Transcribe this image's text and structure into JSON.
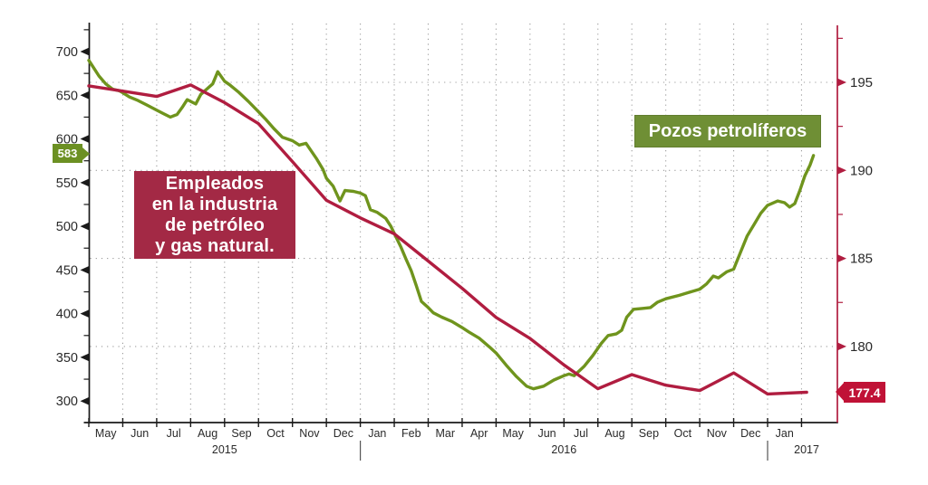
{
  "colors": {
    "background": "#ffffff",
    "wells_green_line": "#6f941d",
    "wells_green_box": "#6f8f35",
    "wells_green_tag": "#6c9023",
    "employees_red_line": "#b01d40",
    "employees_red_box": "#a32945",
    "employees_red_tag": "#c01236",
    "grid_gray": "#9b9b9b",
    "axis_black": "#1a1a1a",
    "tick_label": "#2a2a2a",
    "white_text": "#ffffff"
  },
  "chart_data": {
    "type": "line",
    "x_axis": {
      "month_labels": [
        "May",
        "Jun",
        "Jul",
        "Aug",
        "Sep",
        "Oct",
        "Nov",
        "Dec",
        "Jan",
        "Feb",
        "Mar",
        "Apr",
        "May",
        "Jun",
        "Jul",
        "Aug",
        "Sep",
        "Oct",
        "Nov",
        "Dec",
        "Jan"
      ],
      "year_labels": [
        {
          "label": "2015",
          "center_slot": 4.0
        },
        {
          "label": "2016",
          "center_slot": 14.0
        },
        {
          "label": "2017",
          "center_slot": 21.15
        }
      ],
      "year_separator_slots": [
        8,
        20
      ],
      "start_month": "May 2015",
      "end_month": "Jan 2017"
    },
    "left_axis": {
      "majors": [
        700,
        650,
        600,
        550,
        500,
        450,
        400,
        350,
        300
      ],
      "minors": [
        725,
        675,
        625,
        575,
        525,
        475,
        425,
        375,
        325
      ],
      "range": [
        300,
        700
      ]
    },
    "right_axis": {
      "majors": [
        195,
        190,
        185,
        180
      ],
      "minors": [
        197.5,
        192.5,
        187.5,
        182.5
      ],
      "range": [
        177,
        197
      ]
    },
    "grid": {
      "vertical": "monthly",
      "horizontal_at_right_majors": true
    },
    "end_labels": {
      "wells_latest": "583",
      "employees_latest": "177.4"
    },
    "series": [
      {
        "name": "Pozos petrolíferos",
        "axis": "left",
        "color_key": "wells_green_line",
        "points": [
          [
            0,
            690
          ],
          [
            0.15,
            681
          ],
          [
            0.3,
            672
          ],
          [
            0.5,
            663
          ],
          [
            0.7,
            657
          ],
          [
            0.9,
            655
          ],
          [
            1.0,
            653
          ],
          [
            1.2,
            648
          ],
          [
            1.45,
            644
          ],
          [
            1.7,
            639
          ],
          [
            2.0,
            633
          ],
          [
            2.2,
            629
          ],
          [
            2.4,
            625
          ],
          [
            2.6,
            628
          ],
          [
            2.75,
            636
          ],
          [
            2.9,
            645
          ],
          [
            3.05,
            642
          ],
          [
            3.15,
            640
          ],
          [
            3.3,
            651
          ],
          [
            3.5,
            658
          ],
          [
            3.65,
            663
          ],
          [
            3.8,
            677
          ],
          [
            4.0,
            666
          ],
          [
            4.15,
            662
          ],
          [
            4.4,
            654
          ],
          [
            4.7,
            643
          ],
          [
            5.0,
            631
          ],
          [
            5.2,
            623
          ],
          [
            5.45,
            612
          ],
          [
            5.7,
            602
          ],
          [
            6.0,
            598
          ],
          [
            6.2,
            593
          ],
          [
            6.4,
            595
          ],
          [
            6.7,
            578
          ],
          [
            6.9,
            565
          ],
          [
            7.0,
            555
          ],
          [
            7.2,
            546
          ],
          [
            7.4,
            529
          ],
          [
            7.55,
            541
          ],
          [
            7.8,
            540
          ],
          [
            8.0,
            538
          ],
          [
            8.15,
            535
          ],
          [
            8.3,
            519
          ],
          [
            8.5,
            516
          ],
          [
            8.75,
            509
          ],
          [
            8.9,
            500
          ],
          [
            9.05,
            488
          ],
          [
            9.2,
            476
          ],
          [
            9.35,
            462
          ],
          [
            9.5,
            449
          ],
          [
            9.65,
            432
          ],
          [
            9.8,
            414
          ],
          [
            10.0,
            407
          ],
          [
            10.15,
            401
          ],
          [
            10.4,
            396
          ],
          [
            10.7,
            391
          ],
          [
            11.0,
            384
          ],
          [
            11.2,
            379
          ],
          [
            11.5,
            372
          ],
          [
            11.8,
            362
          ],
          [
            12.0,
            355
          ],
          [
            12.3,
            341
          ],
          [
            12.6,
            328
          ],
          [
            12.9,
            317
          ],
          [
            13.1,
            314
          ],
          [
            13.4,
            317
          ],
          [
            13.7,
            324
          ],
          [
            14.0,
            329
          ],
          [
            14.15,
            331
          ],
          [
            14.3,
            329
          ],
          [
            14.6,
            340
          ],
          [
            14.85,
            352
          ],
          [
            15.1,
            366
          ],
          [
            15.3,
            375
          ],
          [
            15.55,
            377
          ],
          [
            15.7,
            381
          ],
          [
            15.85,
            396
          ],
          [
            16.05,
            405
          ],
          [
            16.3,
            406
          ],
          [
            16.55,
            407
          ],
          [
            16.75,
            413
          ],
          [
            17.0,
            417
          ],
          [
            17.4,
            421
          ],
          [
            17.65,
            424
          ],
          [
            18.0,
            428
          ],
          [
            18.2,
            434
          ],
          [
            18.4,
            443
          ],
          [
            18.55,
            441
          ],
          [
            18.8,
            448
          ],
          [
            19.0,
            451
          ],
          [
            19.2,
            470
          ],
          [
            19.4,
            489
          ],
          [
            19.6,
            502
          ],
          [
            19.8,
            515
          ],
          [
            20.0,
            524
          ],
          [
            20.3,
            529
          ],
          [
            20.5,
            527
          ],
          [
            20.65,
            522
          ],
          [
            20.8,
            526
          ],
          [
            20.95,
            541
          ],
          [
            21.1,
            558
          ],
          [
            21.25,
            570
          ],
          [
            21.35,
            581
          ]
        ]
      },
      {
        "name": "Empleados en la industria de petróleo y gas natural.",
        "label_lines": [
          "Empleados",
          "en la industria",
          "de petróleo",
          "y gas natural."
        ],
        "axis": "right",
        "color_key": "employees_red_line",
        "points": [
          [
            0,
            194.8
          ],
          [
            1,
            194.5
          ],
          [
            2,
            194.2
          ],
          [
            3,
            194.85
          ],
          [
            4,
            193.85
          ],
          [
            5,
            192.65
          ],
          [
            6,
            190.5
          ],
          [
            7,
            188.3
          ],
          [
            8,
            187.3
          ],
          [
            9,
            186.4
          ],
          [
            10,
            184.85
          ],
          [
            11,
            183.3
          ],
          [
            12,
            181.65
          ],
          [
            13,
            180.45
          ],
          [
            14,
            178.95
          ],
          [
            15,
            177.6
          ],
          [
            16,
            178.4
          ],
          [
            17,
            177.8
          ],
          [
            18,
            177.5
          ],
          [
            19,
            178.5
          ],
          [
            20,
            177.3
          ],
          [
            21.15,
            177.4
          ]
        ]
      }
    ]
  }
}
